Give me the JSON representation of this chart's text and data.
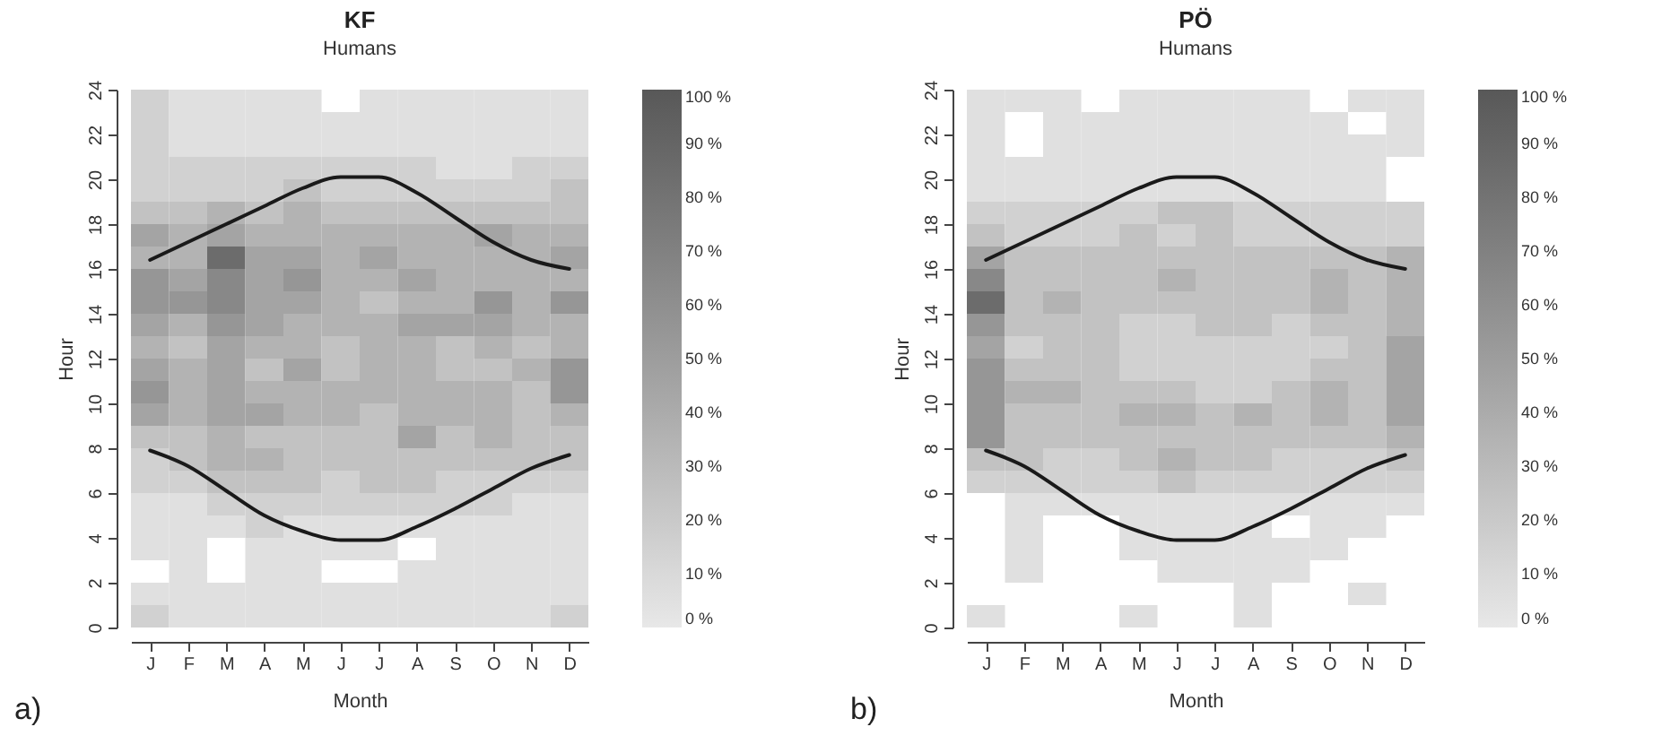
{
  "chart_data": [
    {
      "type": "heatmap",
      "title": "KF",
      "subtitle": "Humans",
      "xlabel": "Month",
      "ylabel": "Hour",
      "annotations": [
        "a)"
      ],
      "categories": [
        "J",
        "F",
        "M",
        "A",
        "M",
        "J",
        "J",
        "A",
        "S",
        "O",
        "N",
        "D"
      ],
      "ylim": [
        0,
        24
      ],
      "yticks": [
        0,
        2,
        4,
        6,
        8,
        10,
        12,
        14,
        16,
        18,
        20,
        22,
        24
      ],
      "clim": [
        0,
        100
      ],
      "cticks": [
        {
          "value": 0,
          "label": "0 %"
        },
        {
          "value": 10,
          "label": "10 %"
        },
        {
          "value": 20,
          "label": "20 %"
        },
        {
          "value": 30,
          "label": "30 %"
        },
        {
          "value": 40,
          "label": "40 %"
        },
        {
          "value": 50,
          "label": "50 %"
        },
        {
          "value": 60,
          "label": "60 %"
        },
        {
          "value": 70,
          "label": "70 %"
        },
        {
          "value": 80,
          "label": "80 %"
        },
        {
          "value": 90,
          "label": "90 %"
        },
        {
          "value": 100,
          "label": "100 %"
        }
      ],
      "cells": [
        [
          15,
          5,
          5,
          5,
          5,
          null,
          5,
          5,
          5,
          5,
          5,
          5
        ],
        [
          15,
          5,
          5,
          5,
          5,
          5,
          5,
          5,
          5,
          5,
          5,
          5
        ],
        [
          15,
          5,
          5,
          5,
          5,
          5,
          5,
          5,
          5,
          5,
          5,
          5
        ],
        [
          15,
          15,
          15,
          15,
          15,
          15,
          15,
          15,
          5,
          5,
          15,
          15
        ],
        [
          15,
          15,
          15,
          15,
          25,
          15,
          15,
          15,
          15,
          15,
          15,
          25
        ],
        [
          25,
          25,
          35,
          25,
          35,
          25,
          25,
          25,
          25,
          25,
          25,
          25
        ],
        [
          45,
          35,
          45,
          35,
          35,
          35,
          35,
          35,
          35,
          45,
          35,
          35
        ],
        [
          35,
          35,
          85,
          45,
          45,
          35,
          45,
          35,
          35,
          35,
          35,
          45
        ],
        [
          55,
          45,
          65,
          45,
          55,
          35,
          35,
          45,
          35,
          35,
          35,
          35
        ],
        [
          55,
          55,
          65,
          45,
          45,
          35,
          25,
          35,
          35,
          55,
          35,
          55
        ],
        [
          45,
          35,
          55,
          45,
          35,
          35,
          35,
          45,
          45,
          45,
          35,
          35
        ],
        [
          35,
          25,
          45,
          35,
          35,
          25,
          35,
          35,
          25,
          35,
          25,
          35
        ],
        [
          45,
          35,
          45,
          25,
          45,
          25,
          35,
          35,
          25,
          25,
          35,
          55
        ],
        [
          55,
          35,
          45,
          35,
          35,
          35,
          35,
          35,
          35,
          35,
          25,
          55
        ],
        [
          45,
          35,
          45,
          45,
          35,
          35,
          25,
          35,
          35,
          35,
          25,
          35
        ],
        [
          25,
          25,
          35,
          25,
          25,
          25,
          25,
          45,
          25,
          35,
          25,
          25
        ],
        [
          15,
          25,
          35,
          35,
          25,
          25,
          25,
          25,
          25,
          25,
          25,
          25
        ],
        [
          15,
          15,
          25,
          25,
          25,
          15,
          25,
          25,
          15,
          15,
          15,
          15
        ],
        [
          5,
          5,
          15,
          15,
          15,
          15,
          15,
          15,
          15,
          15,
          5,
          5
        ],
        [
          5,
          5,
          5,
          15,
          5,
          5,
          5,
          5,
          5,
          5,
          5,
          5
        ],
        [
          5,
          5,
          null,
          5,
          5,
          5,
          5,
          null,
          5,
          5,
          5,
          5
        ],
        [
          null,
          5,
          null,
          5,
          5,
          null,
          null,
          5,
          5,
          5,
          5,
          5
        ],
        [
          5,
          5,
          5,
          5,
          5,
          5,
          5,
          5,
          5,
          5,
          5,
          5
        ],
        [
          15,
          5,
          5,
          5,
          5,
          5,
          5,
          5,
          5,
          5,
          5,
          15
        ]
      ],
      "series": [
        {
          "type": "line",
          "color": "#1a1a1a",
          "values": [
            16.4,
            17.2,
            18.0,
            18.8,
            19.6,
            20.1,
            20.1,
            19.4,
            18.3,
            17.2,
            16.4,
            16.0
          ]
        },
        {
          "type": "line",
          "color": "#1a1a1a",
          "values": [
            7.9,
            7.2,
            6.1,
            5.0,
            4.3,
            3.9,
            3.9,
            4.5,
            5.3,
            6.2,
            7.1,
            7.7
          ]
        }
      ]
    },
    {
      "type": "heatmap",
      "title": "PÖ",
      "subtitle": "Humans",
      "xlabel": "Month",
      "ylabel": "Hour",
      "annotations": [
        "b)"
      ],
      "categories": [
        "J",
        "F",
        "M",
        "A",
        "M",
        "J",
        "J",
        "A",
        "S",
        "O",
        "N",
        "D"
      ],
      "ylim": [
        0,
        24
      ],
      "yticks": [
        0,
        2,
        4,
        6,
        8,
        10,
        12,
        14,
        16,
        18,
        20,
        22,
        24
      ],
      "clim": [
        0,
        100
      ],
      "cticks": [
        {
          "value": 0,
          "label": "0 %"
        },
        {
          "value": 10,
          "label": "10 %"
        },
        {
          "value": 20,
          "label": "20 %"
        },
        {
          "value": 30,
          "label": "30 %"
        },
        {
          "value": 40,
          "label": "40 %"
        },
        {
          "value": 50,
          "label": "50 %"
        },
        {
          "value": 60,
          "label": "60 %"
        },
        {
          "value": 70,
          "label": "70 %"
        },
        {
          "value": 80,
          "label": "80 %"
        },
        {
          "value": 90,
          "label": "90 %"
        },
        {
          "value": 100,
          "label": "100 %"
        }
      ],
      "cells": [
        [
          5,
          5,
          5,
          null,
          5,
          5,
          5,
          5,
          5,
          null,
          5,
          5
        ],
        [
          5,
          null,
          5,
          5,
          5,
          5,
          5,
          5,
          5,
          5,
          null,
          5
        ],
        [
          5,
          null,
          5,
          5,
          5,
          5,
          5,
          5,
          5,
          5,
          5,
          5
        ],
        [
          5,
          5,
          5,
          5,
          5,
          5,
          5,
          5,
          5,
          5,
          5,
          null
        ],
        [
          5,
          5,
          5,
          5,
          5,
          5,
          5,
          5,
          5,
          5,
          5,
          null
        ],
        [
          15,
          15,
          15,
          15,
          15,
          25,
          25,
          15,
          15,
          15,
          15,
          15
        ],
        [
          25,
          15,
          15,
          15,
          25,
          15,
          25,
          15,
          15,
          15,
          15,
          15
        ],
        [
          45,
          25,
          25,
          25,
          25,
          25,
          25,
          25,
          25,
          25,
          25,
          35
        ],
        [
          65,
          25,
          25,
          25,
          25,
          35,
          25,
          25,
          25,
          35,
          25,
          35
        ],
        [
          85,
          25,
          35,
          25,
          25,
          25,
          25,
          25,
          25,
          35,
          25,
          35
        ],
        [
          55,
          25,
          25,
          25,
          15,
          15,
          25,
          25,
          15,
          25,
          25,
          35
        ],
        [
          45,
          15,
          25,
          25,
          15,
          15,
          15,
          15,
          15,
          15,
          25,
          45
        ],
        [
          55,
          25,
          25,
          25,
          15,
          15,
          15,
          15,
          15,
          25,
          25,
          45
        ],
        [
          55,
          35,
          35,
          25,
          25,
          25,
          15,
          15,
          25,
          35,
          25,
          45
        ],
        [
          55,
          25,
          25,
          25,
          35,
          35,
          25,
          35,
          25,
          35,
          25,
          45
        ],
        [
          55,
          25,
          25,
          25,
          25,
          25,
          25,
          25,
          25,
          25,
          25,
          35
        ],
        [
          25,
          25,
          15,
          15,
          25,
          35,
          25,
          25,
          15,
          15,
          15,
          25
        ],
        [
          15,
          15,
          15,
          15,
          15,
          25,
          15,
          15,
          15,
          15,
          15,
          15
        ],
        [
          null,
          5,
          5,
          5,
          5,
          5,
          5,
          5,
          5,
          5,
          5,
          5
        ],
        [
          null,
          5,
          null,
          null,
          5,
          5,
          5,
          5,
          null,
          5,
          5,
          null
        ],
        [
          null,
          5,
          null,
          null,
          5,
          5,
          5,
          5,
          5,
          5,
          null,
          null
        ],
        [
          null,
          5,
          null,
          null,
          null,
          5,
          5,
          5,
          5,
          null,
          null,
          null
        ],
        [
          null,
          null,
          null,
          null,
          null,
          null,
          null,
          5,
          null,
          null,
          5,
          null
        ],
        [
          5,
          null,
          null,
          null,
          5,
          null,
          null,
          5,
          null,
          null,
          null,
          null
        ]
      ],
      "series": [
        {
          "type": "line",
          "color": "#1a1a1a",
          "values": [
            16.4,
            17.2,
            18.0,
            18.8,
            19.6,
            20.1,
            20.1,
            19.4,
            18.3,
            17.2,
            16.4,
            16.0
          ]
        },
        {
          "type": "line",
          "color": "#1a1a1a",
          "values": [
            7.9,
            7.2,
            6.1,
            5.0,
            4.3,
            3.9,
            3.9,
            4.5,
            5.3,
            6.2,
            7.1,
            7.7
          ]
        }
      ]
    }
  ]
}
